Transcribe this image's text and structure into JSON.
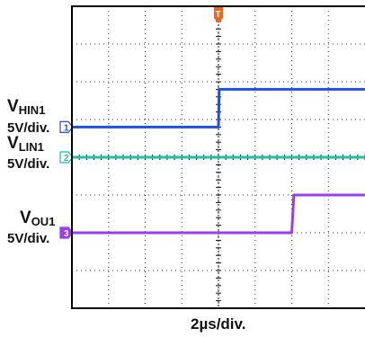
{
  "chart_data": {
    "type": "line",
    "title": "",
    "trigger_marker": "T",
    "xlabel": "2µs/div.",
    "grid": true,
    "x_divisions": 8,
    "y_divisions": 8,
    "channels": [
      {
        "id": "1",
        "name_main": "V",
        "name_sub": "HIN1",
        "scale": "5V/div.",
        "color": "#1f4fe6",
        "marker_style": "outline",
        "ground_div": 4.8,
        "points": [
          [
            0,
            0
          ],
          [
            4.0,
            0
          ],
          [
            4.02,
            1.0
          ],
          [
            8.0,
            1.0
          ]
        ]
      },
      {
        "id": "2",
        "name_main": "V",
        "name_sub": "LIN1",
        "scale": "5V/div.",
        "color": "#1fbfa0",
        "marker_style": "outline",
        "ground_div": 4.0,
        "points": [
          [
            0,
            0
          ],
          [
            8.0,
            0
          ]
        ]
      },
      {
        "id": "3",
        "name_main": "V",
        "name_sub": "OU1",
        "scale": "5V/div.",
        "color": "#9a3cf0",
        "marker_style": "filled",
        "ground_div": 2.0,
        "points": [
          [
            0,
            0
          ],
          [
            6.0,
            0
          ],
          [
            6.06,
            1.0
          ],
          [
            8.0,
            1.0
          ]
        ]
      }
    ]
  }
}
